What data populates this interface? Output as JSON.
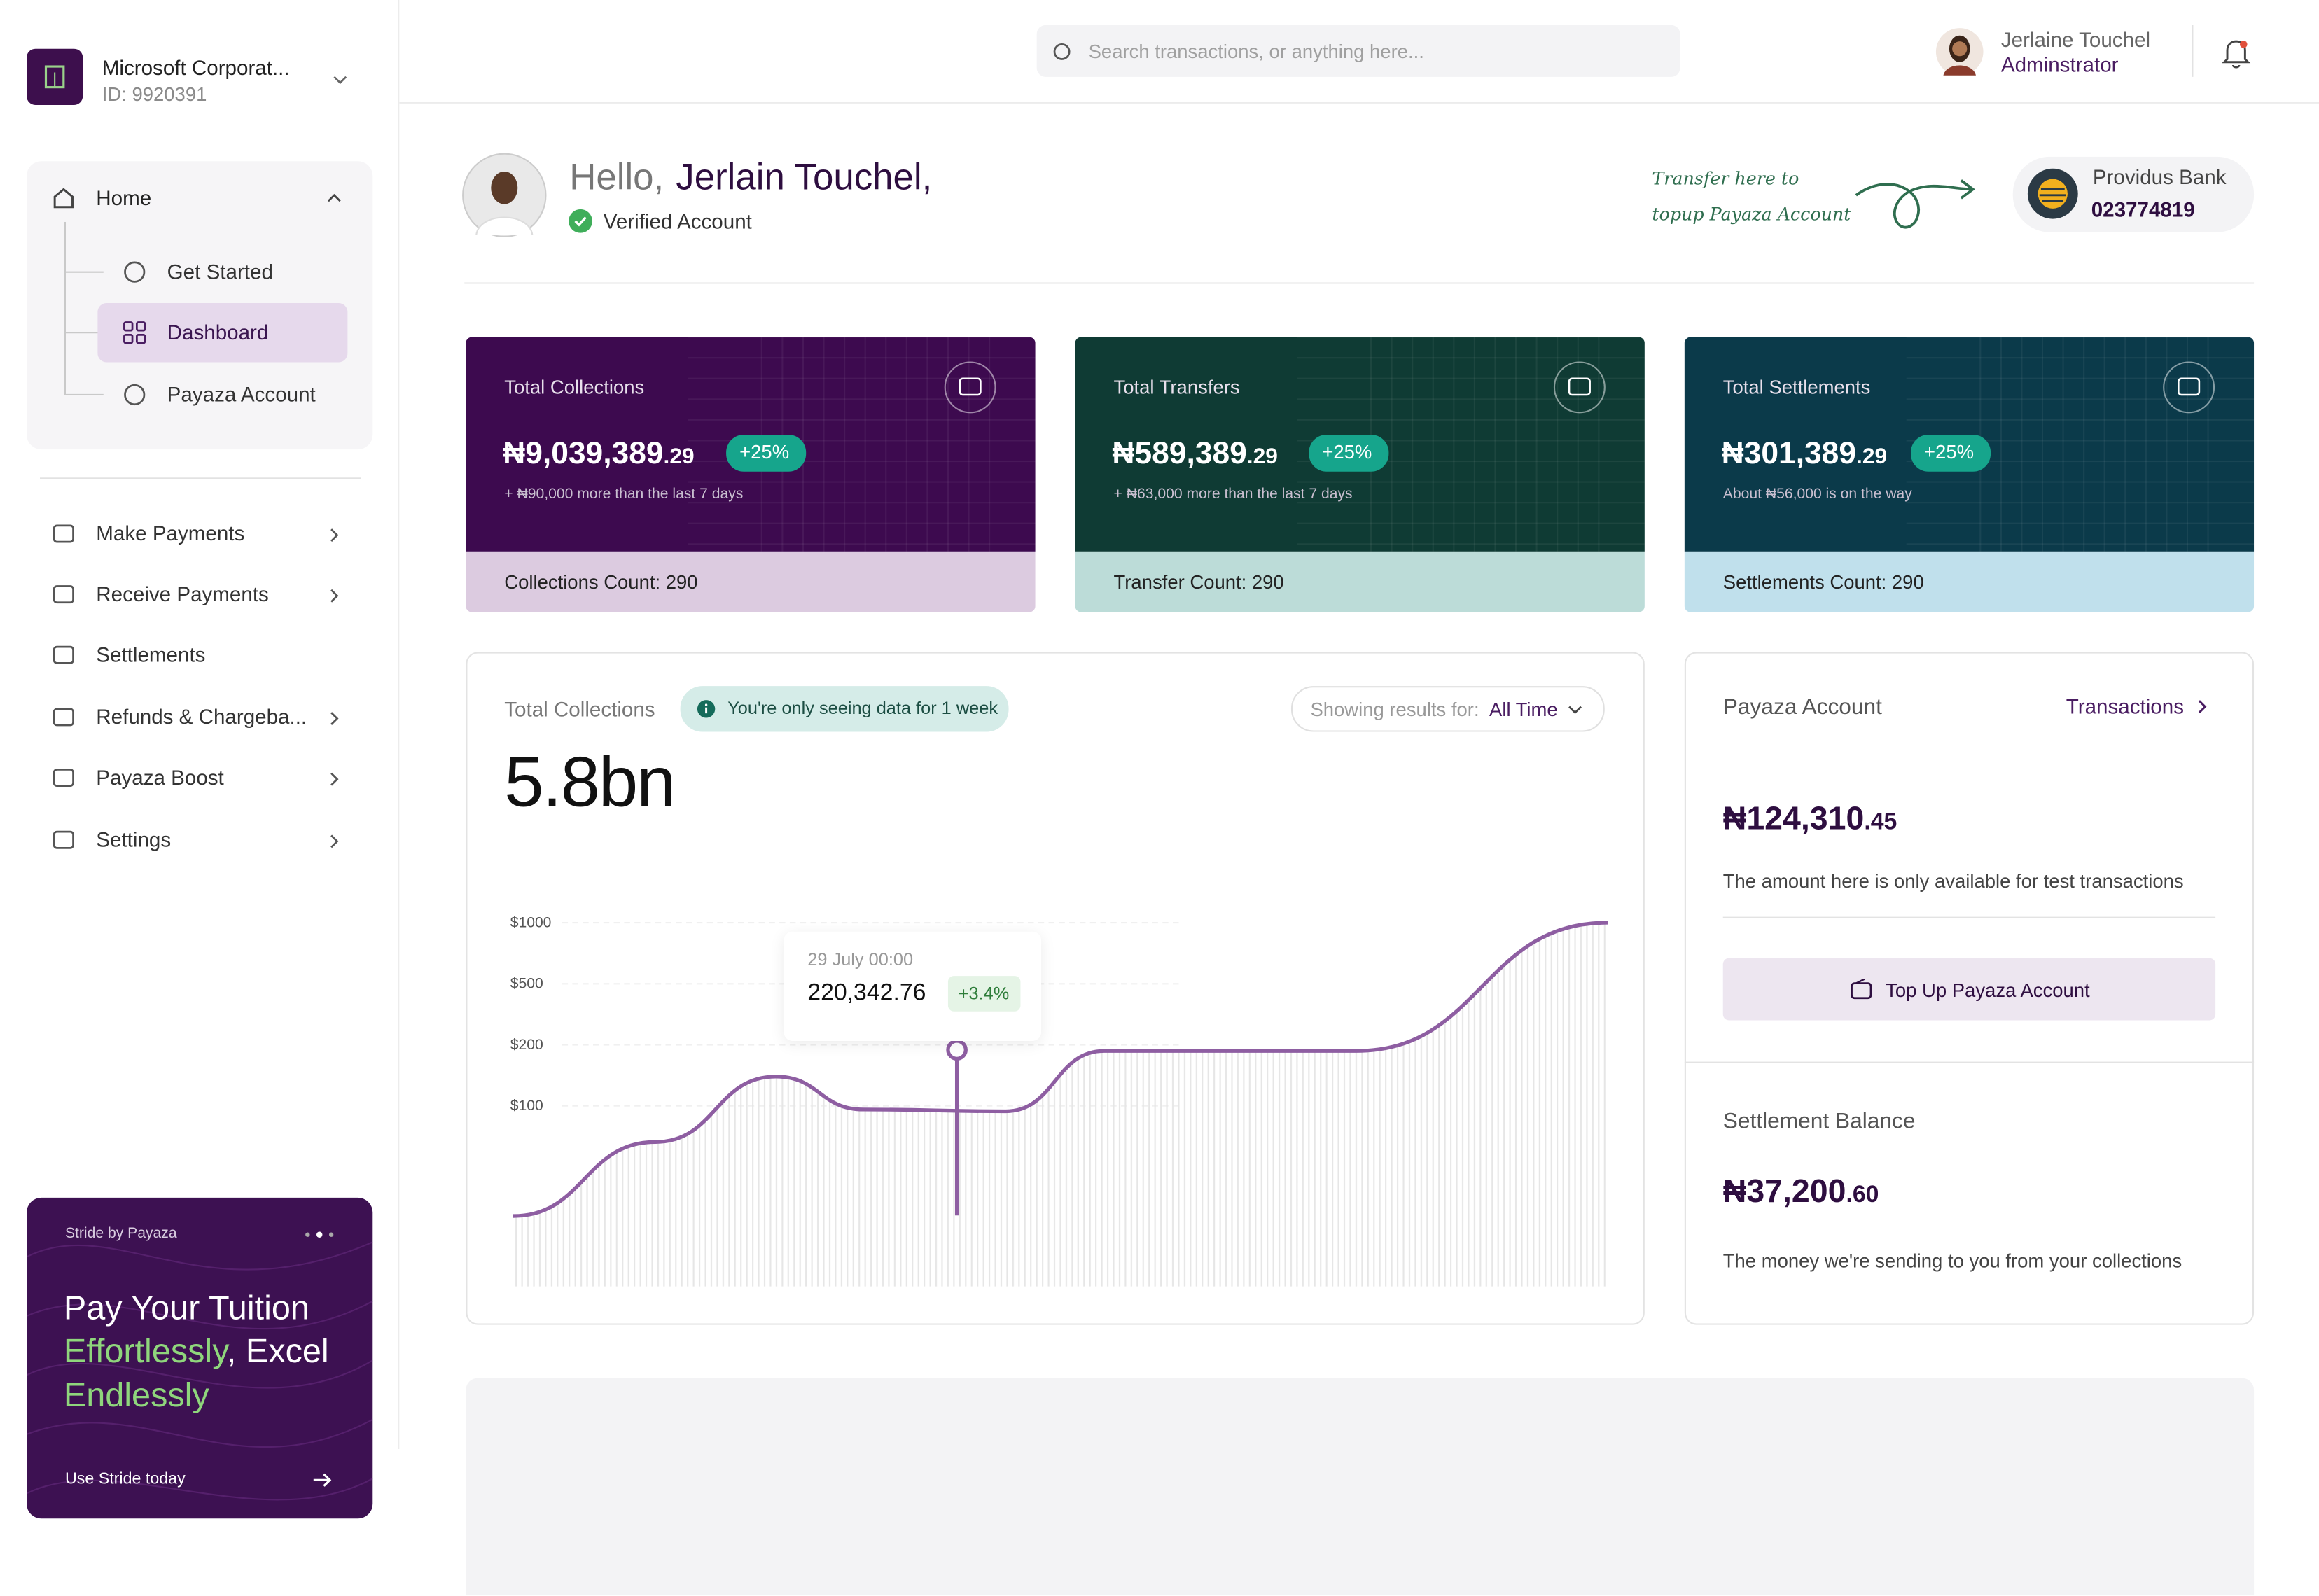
{
  "sidebar": {
    "org_name": "Microsoft Corporat...",
    "org_id": "ID: 9920391",
    "home": "Home",
    "home_items": [
      "Get Started",
      "Dashboard",
      "Payaza Account"
    ],
    "menu": [
      "Make Payments",
      "Receive Payments",
      "Settlements",
      "Refunds & Chargeba...",
      "Payaza Boost",
      "Settings"
    ],
    "promo": {
      "brand": "Stride by Payaza",
      "line_1": "Pay Your Tuition",
      "line_2a": "Effortlessly",
      "line_2b": ", Excel",
      "line_3": "Endlessly",
      "cta": "Use Stride today"
    }
  },
  "topbar": {
    "search_placeholder": "Search transactions, or anything here...",
    "user_name": "Jerlaine Touchel",
    "user_role": "Adminstrator"
  },
  "greeting": {
    "hello": "Hello,",
    "name": "Jerlain Touchel,",
    "status": "Verified Account",
    "note_1": "Transfer here to",
    "note_2": "topup Payaza Account",
    "bank_name": "Providus Bank",
    "account_number": "023774819"
  },
  "cards": [
    {
      "title": "Total Collections",
      "amount": "₦9,039,389",
      "cents": ".29",
      "change": "+25%",
      "sub": "+ ₦90,000 more than the last 7 days",
      "footer": "Collections Count: 290"
    },
    {
      "title": "Total Transfers",
      "amount": "₦589,389",
      "cents": ".29",
      "change": "+25%",
      "sub": "+ ₦63,000 more than the last 7 days",
      "footer": "Transfer Count: 290"
    },
    {
      "title": "Total Settlements",
      "amount": "₦301,389",
      "cents": ".29",
      "change": "+25%",
      "sub": "About ₦56,000 is on the way",
      "footer": "Settlements Count: 290"
    }
  ],
  "collections_panel": {
    "title": "Total Collections",
    "notice": "You're only seeing data for 1 week",
    "filter_label": "Showing results for:",
    "filter_value": "All Time",
    "total": "5.8bn",
    "tooltip": {
      "date": "29 July 00:00",
      "value": "220,342.76",
      "change": "+3.4%"
    }
  },
  "chart_data": {
    "type": "line",
    "x": [
      0,
      13,
      24,
      32,
      45,
      54,
      77,
      100
    ],
    "values": [
      39,
      80,
      148,
      98,
      97,
      190,
      190,
      1000
    ],
    "color": "#8e5ea2",
    "xlim": [
      0,
      100
    ],
    "ylim": [
      0,
      1000
    ],
    "yticks": [
      {
        "value": 1000,
        "label": "$1000"
      },
      {
        "value": 500,
        "label": "$500"
      },
      {
        "value": 200,
        "label": "$200"
      },
      {
        "value": 100,
        "label": "$100"
      }
    ],
    "grid": true
  },
  "account_panel": {
    "title": "Payaza Account",
    "link": "Transactions",
    "balance": "₦124,310",
    "balance_cents": ".45",
    "balance_note": "The amount here is only available for test transactions",
    "button": "Top Up Payaza Account",
    "settlement_title": "Settlement Balance",
    "settlement": "₦37,200",
    "settlement_cents": ".60",
    "settlement_note": "The money we're sending to you from your collections"
  }
}
